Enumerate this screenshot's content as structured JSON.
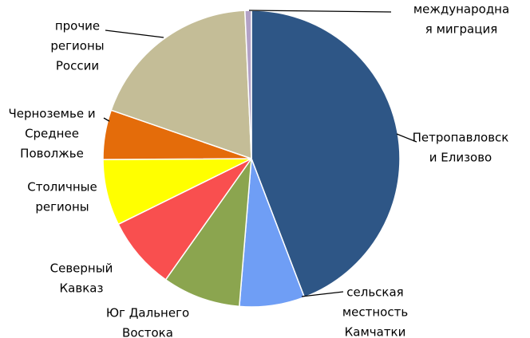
{
  "chart_data": {
    "type": "pie",
    "categories": [
      [
        "Петропавловск",
        "и Елизово"
      ],
      [
        "сельская",
        "местность",
        "Камчатки"
      ],
      [
        "Юг Дальнего",
        "Востока"
      ],
      [
        "Северный",
        "Кавказ"
      ],
      [
        "Столичные",
        "регионы"
      ],
      [
        "Черноземье и",
        "Среднее",
        "Поволжье"
      ],
      [
        "прочие",
        "регионы",
        "России"
      ],
      [
        "международна",
        "я миграция"
      ]
    ],
    "values": [
      44.2,
      7.1,
      8.5,
      7.9,
      7.2,
      5.4,
      19,
      0.7
    ],
    "colors": [
      "#2e5686",
      "#6f9ef5",
      "#8ba54f",
      "#f94f4f",
      "#ffff00",
      "#e46c0a",
      "#c4bd97",
      "#b3a2c7"
    ]
  }
}
